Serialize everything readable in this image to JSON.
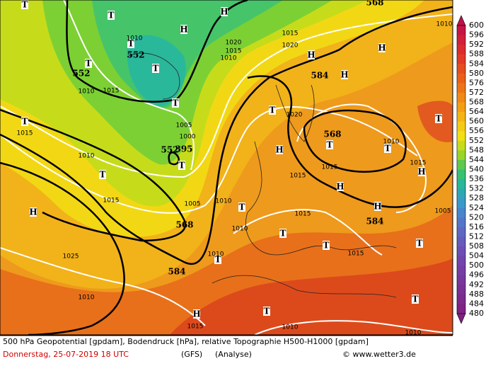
{
  "map": {
    "labels": [
      "T",
      "T",
      "T",
      "T",
      "T",
      "T",
      "T",
      "T",
      "T",
      "T",
      "T",
      "T",
      "T",
      "T",
      "T",
      "T",
      "T",
      "T",
      "T",
      "T",
      "H",
      "H",
      "H",
      "H",
      "H",
      "H",
      "H",
      "H",
      "H",
      "H",
      "H",
      "552",
      "552",
      "552",
      "568",
      "568",
      "568",
      "584",
      "584",
      "584",
      "395",
      "1015",
      "1015",
      "1015",
      "1015",
      "1015",
      "1015",
      "1015",
      "1015",
      "1015",
      "1015",
      "1010",
      "1010",
      "1010",
      "1010",
      "1010",
      "1010",
      "1010",
      "1010",
      "1010",
      "1010",
      "1010",
      "1020",
      "1020",
      "1020",
      "1025",
      "1005",
      "1005",
      "1005",
      "1000",
      "1010",
      "1015"
    ]
  },
  "colorbar": {
    "labels": [
      600,
      596,
      592,
      588,
      584,
      580,
      576,
      572,
      568,
      564,
      560,
      556,
      552,
      548,
      544,
      540,
      536,
      532,
      528,
      524,
      520,
      516,
      512,
      508,
      504,
      500,
      496,
      492,
      488,
      484,
      480
    ]
  },
  "footer": {
    "line1": "500 hPa Geopotential [gpdam], Bodendruck [hPa], relative Topographie H500-H1000 [gpdam]",
    "date": "Donnerstag, 25-07-2019  18 UTC",
    "model": "(GFS)",
    "run": "(Analyse)",
    "credit": "© www.wetter3.de"
  }
}
